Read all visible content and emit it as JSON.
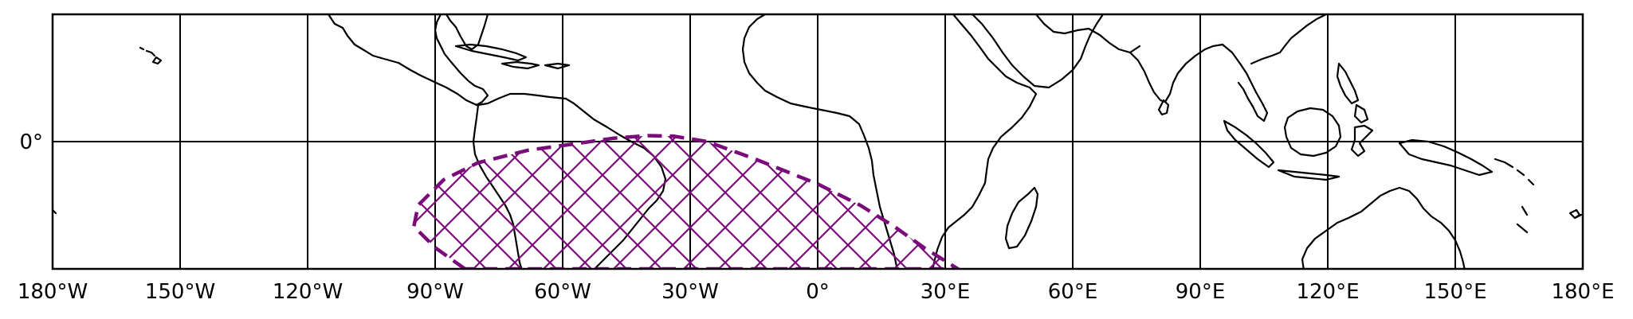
{
  "map": {
    "projection": "PlateCarree",
    "lon_range": [
      -180,
      180
    ],
    "lat_range": [
      -30,
      30
    ],
    "gridlines": {
      "lon": [
        -180,
        -150,
        -120,
        -90,
        -60,
        -30,
        0,
        30,
        60,
        90,
        120,
        150,
        180
      ],
      "lat": [
        0
      ]
    },
    "x_tick_labels": [
      "180°W",
      "150°W",
      "120°W",
      "90°W",
      "60°W",
      "30°W",
      "0°",
      "30°E",
      "60°E",
      "90°E",
      "120°E",
      "150°E",
      "180°E"
    ],
    "y_tick_labels": [
      "0°"
    ],
    "region": {
      "name": "",
      "color": "#7a0b7a",
      "hatch": "cross",
      "boundary_lonlat": [
        [
          -83,
          -30
        ],
        [
          -90,
          -25
        ],
        [
          -95,
          -20
        ],
        [
          -94,
          -15
        ],
        [
          -88,
          -9
        ],
        [
          -80,
          -5
        ],
        [
          -68,
          -2
        ],
        [
          -57,
          -0.5
        ],
        [
          -48,
          0.8
        ],
        [
          -40,
          1.4
        ],
        [
          -34,
          1.3
        ],
        [
          -26,
          0
        ],
        [
          -15,
          -4
        ],
        [
          0,
          -10
        ],
        [
          10,
          -15
        ],
        [
          18,
          -20
        ],
        [
          25,
          -25
        ],
        [
          33,
          -30
        ]
      ]
    }
  }
}
